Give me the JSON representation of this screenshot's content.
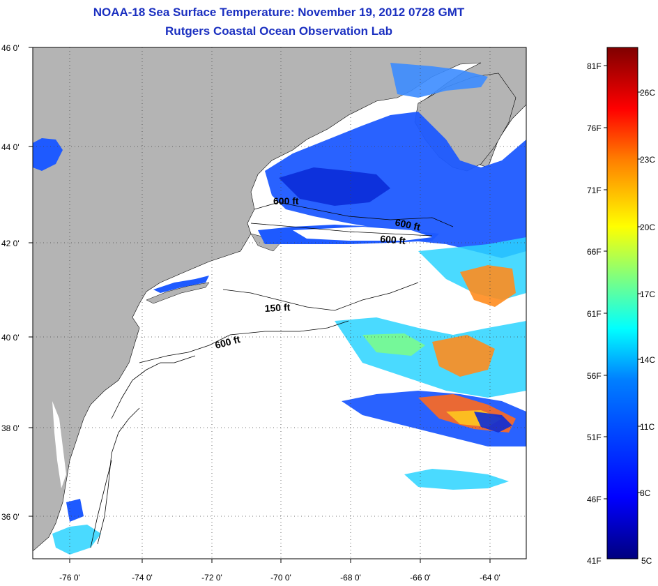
{
  "header": {
    "title": "NOAA-18 Sea Surface Temperature:  November 19, 2012 0728 GMT",
    "subtitle": "Rutgers Coastal Ocean Observation Lab"
  },
  "map": {
    "lat_ticks": [
      "46 0'",
      "44 0'",
      "42 0'",
      "40 0'",
      "38 0'",
      "36 0'"
    ],
    "lon_ticks": [
      "-76 0'",
      "-74 0'",
      "-72 0'",
      "-70 0'",
      "-68 0'",
      "-66 0'",
      "-64 0'"
    ],
    "contour_labels": [
      "600 ft",
      "600 ft",
      "600 ft",
      "150 ft",
      "600 ft"
    ],
    "colors": {
      "land": "#b4b4b4",
      "cloud": "#ffffff",
      "frame": "#000000"
    }
  },
  "colorbar": {
    "fahrenheit_labels": [
      "81F",
      "76F",
      "71F",
      "66F",
      "61F",
      "56F",
      "51F",
      "46F",
      "41F"
    ],
    "celsius_labels": [
      "26C",
      "23C",
      "20C",
      "17C",
      "14C",
      "11C",
      "8C",
      "5C"
    ],
    "gradient": [
      "#00007f",
      "#0000ff",
      "#007fff",
      "#00ffff",
      "#7fff7f",
      "#ffff00",
      "#ff7f00",
      "#ff0000",
      "#7f0000"
    ]
  }
}
